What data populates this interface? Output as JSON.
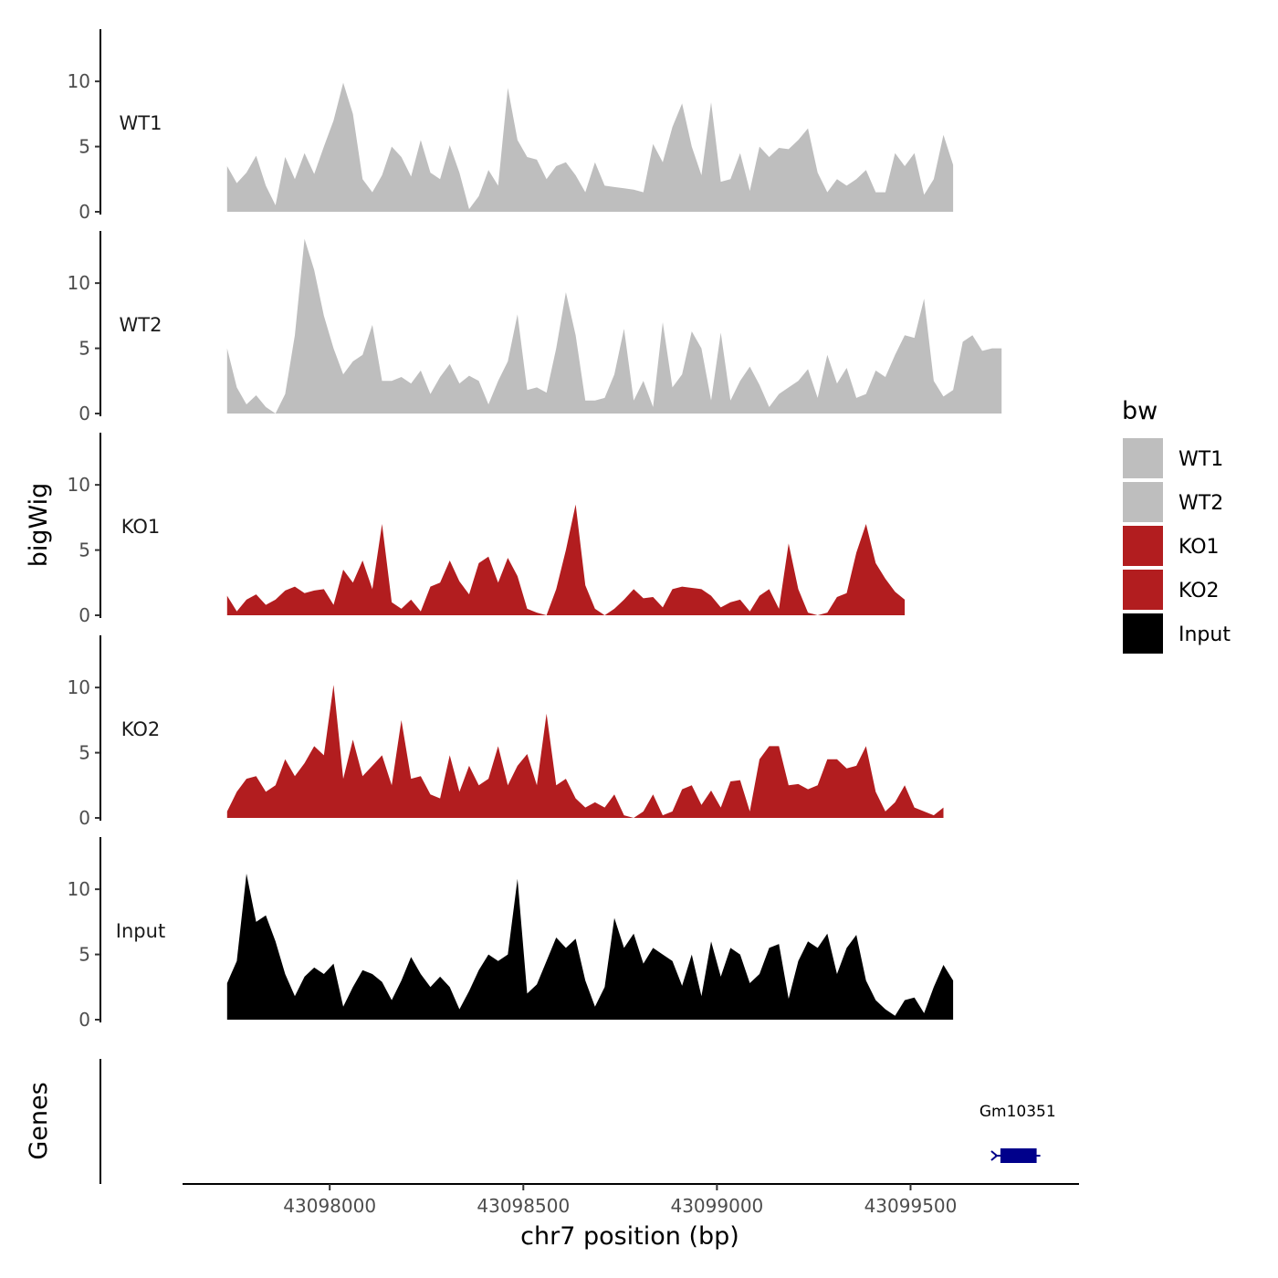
{
  "chart_data": {
    "type": "area",
    "ylabel": "bigWig",
    "xlabel": "chr7 position (bp)",
    "genes_label": "Genes",
    "legend_title": "bw",
    "xlim": [
      43097620,
      43099935
    ],
    "xticks": [
      43098000,
      43098500,
      43099000,
      43099500
    ],
    "xtick_labels": [
      "43098000",
      "43098500",
      "43099000",
      "43099500"
    ],
    "ylim": [
      0,
      14
    ],
    "yticks": [
      0,
      5,
      10
    ],
    "ytick_labels": [
      "0",
      "5",
      "10"
    ],
    "x_start": 43097735,
    "x_step": 25,
    "legend": [
      {
        "name": "WT1",
        "color": "#bebebe"
      },
      {
        "name": "WT2",
        "color": "#bebebe"
      },
      {
        "name": "KO1",
        "color": "#b21d1f"
      },
      {
        "name": "KO2",
        "color": "#b21d1f"
      },
      {
        "name": "Input",
        "color": "#000000"
      }
    ],
    "series": [
      {
        "name": "WT1",
        "color": "#bebebe",
        "values": [
          3.5,
          2.2,
          3.0,
          4.3,
          2.0,
          0.5,
          4.2,
          2.5,
          4.5,
          2.9,
          5.0,
          7.0,
          9.9,
          7.5,
          2.5,
          1.5,
          2.8,
          5.0,
          4.2,
          2.7,
          5.5,
          3.0,
          2.5,
          5.1,
          3.0,
          0.2,
          1.2,
          3.2,
          2.0,
          9.5,
          5.5,
          4.2,
          4.0,
          2.5,
          3.5,
          3.8,
          2.8,
          1.5,
          3.8,
          2.0,
          1.9,
          1.8,
          1.7,
          1.5,
          5.2,
          3.8,
          6.5,
          8.3,
          5.0,
          2.8,
          8.4,
          2.3,
          2.5,
          4.5,
          1.6,
          5.0,
          4.2,
          4.9,
          4.8,
          5.5,
          6.4,
          3.0,
          1.5,
          2.5,
          2.0,
          2.5,
          3.2,
          1.5,
          1.5,
          4.5,
          3.5,
          4.5,
          1.3,
          2.5,
          5.9,
          3.6
        ]
      },
      {
        "name": "WT2",
        "color": "#bebebe",
        "values": [
          5.0,
          2.0,
          0.7,
          1.4,
          0.5,
          -0.2,
          1.5,
          6.0,
          13.4,
          11.0,
          7.5,
          5.0,
          3.0,
          4.0,
          4.5,
          6.8,
          2.5,
          2.5,
          2.8,
          2.3,
          3.3,
          1.5,
          2.8,
          3.8,
          2.3,
          2.9,
          2.5,
          0.7,
          2.5,
          4.0,
          7.6,
          1.8,
          2.0,
          1.6,
          5.0,
          9.3,
          6.0,
          1.0,
          1.0,
          1.2,
          3.0,
          6.5,
          1.0,
          2.5,
          0.5,
          7.0,
          2.0,
          3.0,
          6.3,
          5.0,
          1.0,
          6.2,
          1.0,
          2.5,
          3.6,
          2.2,
          0.5,
          1.5,
          2.0,
          2.5,
          3.4,
          1.2,
          4.5,
          2.3,
          3.5,
          1.2,
          1.5,
          3.3,
          2.8,
          4.5,
          6.0,
          5.8,
          8.8,
          2.5,
          1.3,
          1.8,
          5.5,
          6.0,
          4.8,
          5.0,
          5.0
        ]
      },
      {
        "name": "KO1",
        "color": "#b21d1f",
        "values": [
          1.5,
          0.3,
          1.2,
          1.6,
          0.8,
          1.2,
          1.9,
          2.2,
          1.7,
          1.9,
          2.0,
          0.8,
          3.5,
          2.5,
          4.2,
          2.0,
          7.0,
          1.0,
          0.5,
          1.2,
          0.3,
          2.2,
          2.5,
          4.2,
          2.6,
          1.6,
          4.0,
          4.5,
          2.5,
          4.4,
          3.0,
          0.5,
          0.2,
          -0.1,
          2.0,
          5.0,
          8.5,
          2.3,
          0.5,
          -0.1,
          0.5,
          1.2,
          2.0,
          1.3,
          1.4,
          0.6,
          2.0,
          2.2,
          2.1,
          2.0,
          1.5,
          0.6,
          1.0,
          1.2,
          0.3,
          1.5,
          2.0,
          0.5,
          5.5,
          2.0,
          0.2,
          -0.1,
          0.2,
          1.4,
          1.7,
          4.8,
          7.0,
          4.0,
          2.8,
          1.8,
          1.2
        ]
      },
      {
        "name": "KO2",
        "color": "#b21d1f",
        "values": [
          0.5,
          2.0,
          3.0,
          3.2,
          2.0,
          2.5,
          4.5,
          3.2,
          4.2,
          5.5,
          4.8,
          10.2,
          3.0,
          6.0,
          3.2,
          4.0,
          4.8,
          2.5,
          7.5,
          3.0,
          3.2,
          1.8,
          1.5,
          4.8,
          2.0,
          4.0,
          2.5,
          3.0,
          5.5,
          2.5,
          4.0,
          4.9,
          2.5,
          8.0,
          2.5,
          3.0,
          1.5,
          0.8,
          1.2,
          0.8,
          1.8,
          0.2,
          -0.2,
          0.5,
          1.8,
          0.2,
          0.5,
          2.2,
          2.5,
          1.0,
          2.1,
          0.8,
          2.8,
          2.9,
          0.5,
          4.5,
          5.5,
          5.5,
          2.5,
          2.6,
          2.2,
          2.5,
          4.5,
          4.5,
          3.8,
          4.0,
          5.5,
          2.0,
          0.5,
          1.2,
          2.5,
          0.8,
          0.5,
          0.2,
          0.8
        ]
      },
      {
        "name": "Input",
        "color": "#000000",
        "values": [
          2.8,
          4.5,
          11.2,
          7.5,
          8.0,
          6.0,
          3.5,
          1.8,
          3.3,
          4.0,
          3.5,
          4.3,
          1.0,
          2.5,
          3.8,
          3.5,
          2.9,
          1.5,
          3.0,
          4.8,
          3.5,
          2.5,
          3.3,
          2.5,
          0.8,
          2.2,
          3.8,
          5.0,
          4.5,
          5.0,
          10.8,
          2.0,
          2.7,
          4.5,
          6.3,
          5.5,
          6.2,
          3.0,
          1.0,
          2.5,
          7.8,
          5.5,
          6.6,
          4.3,
          5.5,
          5.0,
          4.5,
          2.6,
          5.0,
          1.8,
          6.0,
          3.3,
          5.5,
          5.0,
          2.8,
          3.5,
          5.5,
          5.8,
          1.6,
          4.5,
          6.0,
          5.5,
          6.6,
          3.5,
          5.5,
          6.5,
          3.0,
          1.5,
          0.8,
          0.3,
          1.5,
          1.7,
          0.5,
          2.5,
          4.2,
          3.0
        ]
      }
    ],
    "genes": [
      {
        "name": "Gm10351",
        "start": 43099718,
        "end": 43099835,
        "strand": "-"
      }
    ]
  }
}
